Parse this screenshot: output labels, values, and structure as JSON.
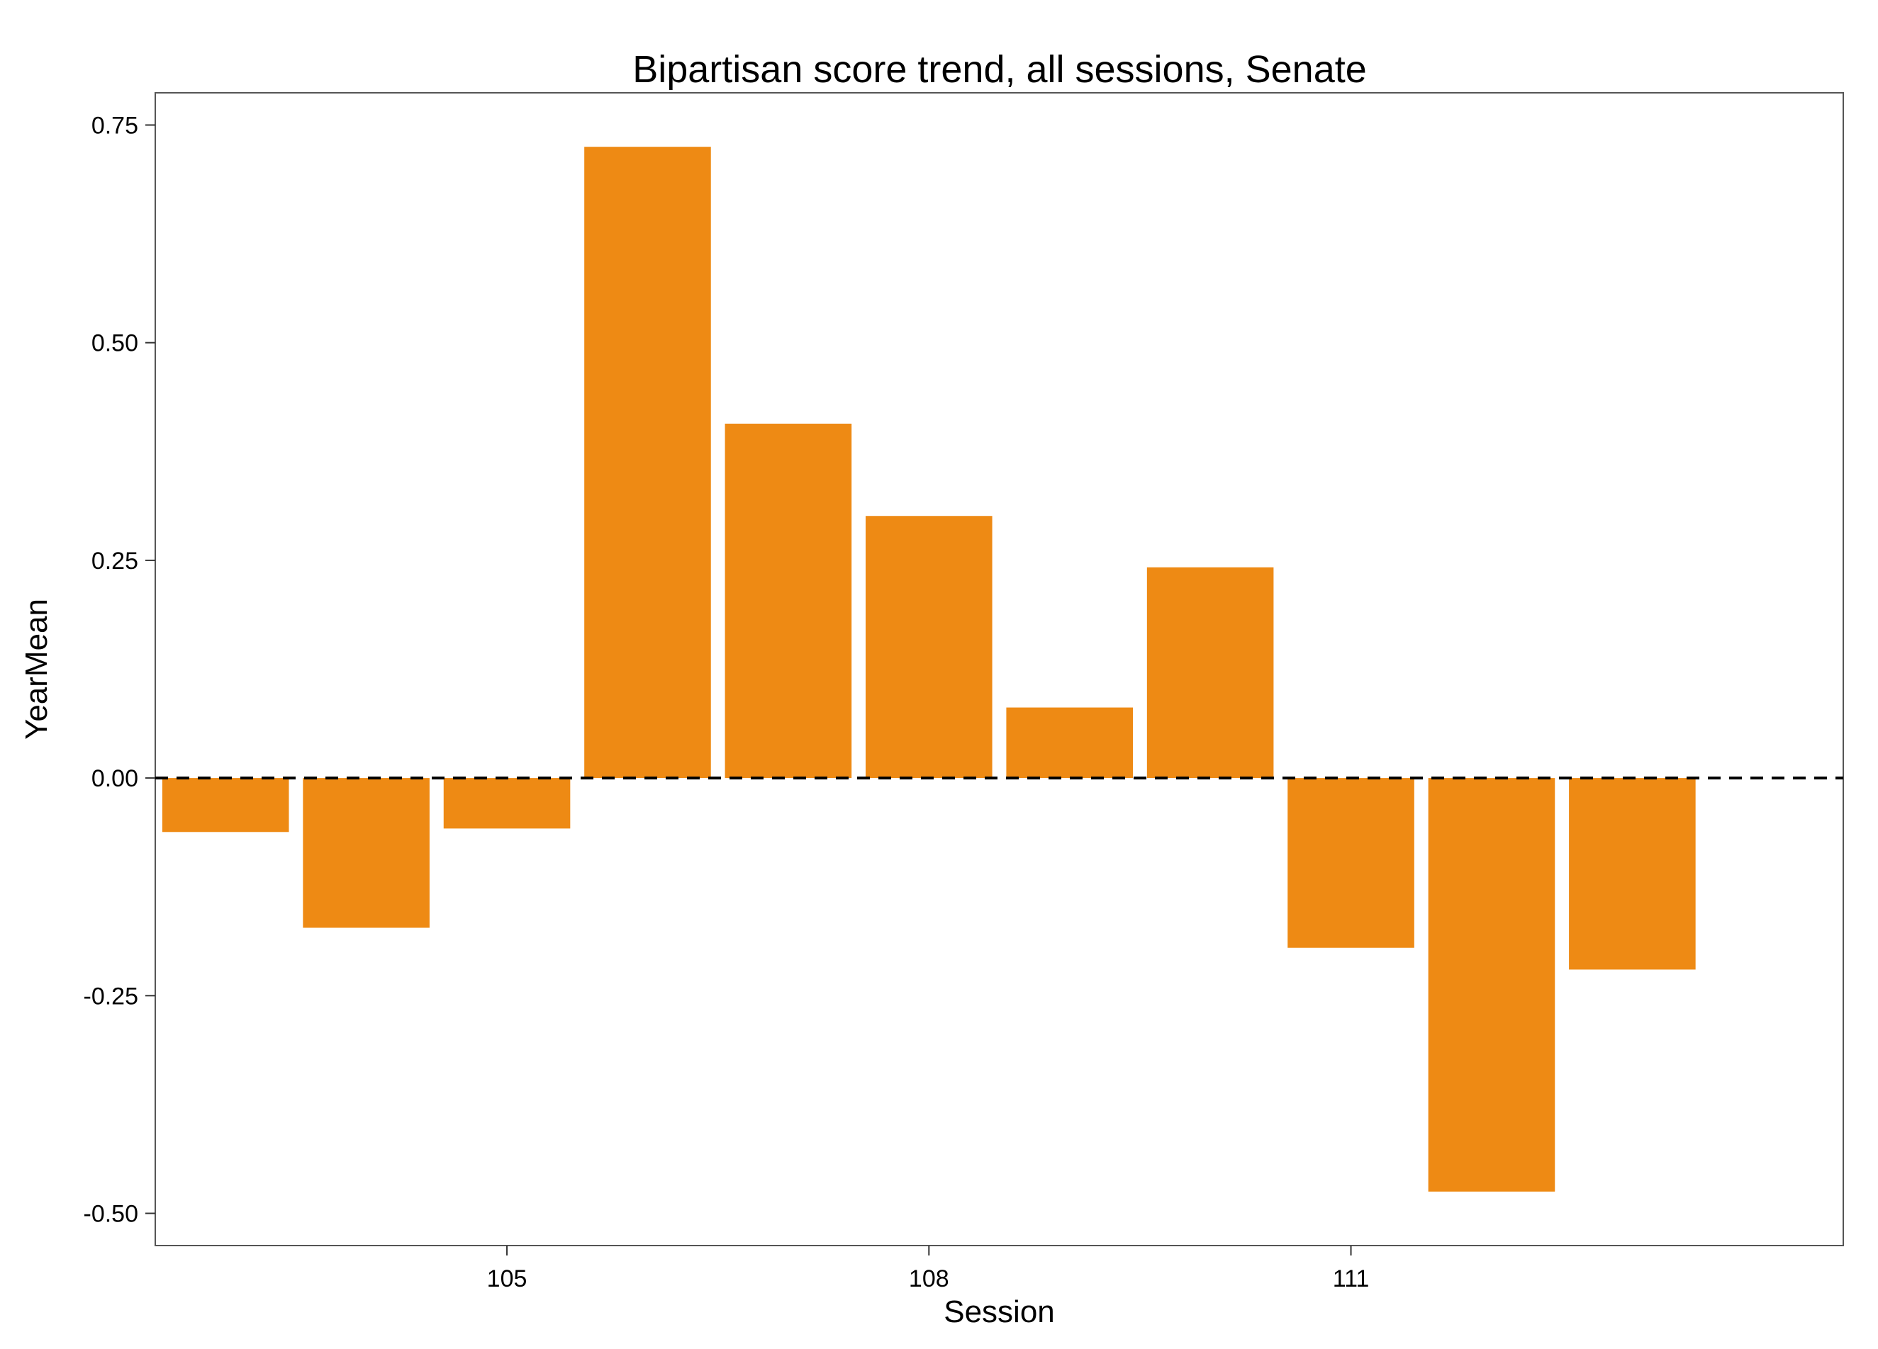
{
  "chart_data": {
    "type": "bar",
    "title": "Bipartisan score trend, all sessions, Senate",
    "xlabel": "Session",
    "ylabel": "YearMean",
    "categories": [
      102,
      103,
      104,
      105,
      106,
      107,
      108,
      109,
      110,
      111,
      112,
      113,
      114
    ],
    "values": [
      null,
      -0.062,
      -0.172,
      -0.058,
      0.725,
      0.407,
      0.301,
      0.081,
      0.242,
      -0.195,
      -0.475,
      -0.22,
      null
    ],
    "bar_categories": [
      103,
      104,
      105,
      106,
      107,
      108,
      109,
      110,
      111,
      112,
      113
    ],
    "bar_values": [
      -0.062,
      -0.172,
      -0.058,
      0.725,
      0.407,
      0.301,
      0.081,
      0.242,
      -0.195,
      -0.475,
      -0.22
    ],
    "x_ticks": [
      "105",
      "108",
      "111"
    ],
    "x_tick_values": [
      105,
      108,
      111
    ],
    "y_ticks": [
      "-0.50",
      "-0.25",
      "0.00",
      "0.25",
      "0.50",
      "0.75"
    ],
    "y_tick_values": [
      -0.5,
      -0.25,
      0,
      0.25,
      0.5,
      0.75
    ],
    "xlim": [
      102.5,
      114.5
    ],
    "ylim": [
      -0.537,
      0.787
    ],
    "reference_line": {
      "y": 0,
      "style": "dashed"
    },
    "bar_color": "#EE8A14",
    "grid": false,
    "legend": "none"
  }
}
